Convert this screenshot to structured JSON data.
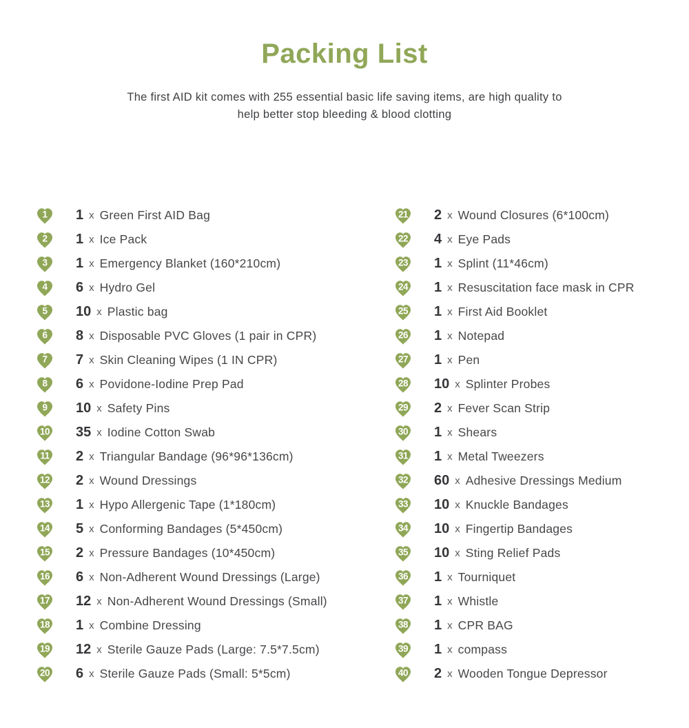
{
  "page": {
    "title": "Packing List",
    "subtitle_line1": "The first AID kit comes with 255 essential basic life saving items, are high quality to",
    "subtitle_line2": "help better stop bleeding & blood clotting"
  },
  "colors": {
    "accent_green": "#90a758",
    "heart_number_color": "#ffffff",
    "quantity_color": "#353539",
    "body_text_color": "#47474b"
  },
  "icons": {
    "item_marker": "heart-icon"
  },
  "list": {
    "sep": "x",
    "left": [
      {
        "num": "1",
        "qty": "1",
        "label": "Green First AID Bag"
      },
      {
        "num": "2",
        "qty": "1",
        "label": "Ice Pack"
      },
      {
        "num": "3",
        "qty": "1",
        "label": "Emergency Blanket (160*210cm)"
      },
      {
        "num": "4",
        "qty": "6",
        "label": "Hydro Gel"
      },
      {
        "num": "5",
        "qty": "10",
        "label": "Plastic bag"
      },
      {
        "num": "6",
        "qty": "8",
        "label": "Disposable PVC Gloves (1 pair in CPR)"
      },
      {
        "num": "7",
        "qty": "7",
        "label": "Skin Cleaning Wipes (1 IN CPR)"
      },
      {
        "num": "8",
        "qty": "6",
        "label": "Povidone-Iodine Prep Pad"
      },
      {
        "num": "9",
        "qty": "10",
        "label": "Safety Pins"
      },
      {
        "num": "10",
        "qty": "35",
        "label": "Iodine Cotton Swab"
      },
      {
        "num": "11",
        "qty": "2",
        "label": "Triangular Bandage (96*96*136cm)"
      },
      {
        "num": "12",
        "qty": "2",
        "label": "Wound Dressings"
      },
      {
        "num": "13",
        "qty": "1",
        "label": "Hypo Allergenic Tape (1*180cm)"
      },
      {
        "num": "14",
        "qty": "5",
        "label": "Conforming Bandages (5*450cm)"
      },
      {
        "num": "15",
        "qty": "2",
        "label": "Pressure Bandages (10*450cm)"
      },
      {
        "num": "16",
        "qty": "6",
        "label": "Non-Adherent Wound Dressings  (Large)"
      },
      {
        "num": "17",
        "qty": "12",
        "label": "Non-Adherent Wound Dressings (Small)"
      },
      {
        "num": "18",
        "qty": "1",
        "label": "Combine Dressing"
      },
      {
        "num": "19",
        "qty": "12",
        "label": "Sterile Gauze Pads  (Large: 7.5*7.5cm)"
      },
      {
        "num": "20",
        "qty": "6",
        "label": "Sterile Gauze Pads  (Small: 5*5cm)"
      }
    ],
    "right": [
      {
        "num": "21",
        "qty": "2",
        "label": "Wound Closures (6*100cm)"
      },
      {
        "num": "22",
        "qty": "4",
        "label": "Eye Pads"
      },
      {
        "num": "23",
        "qty": "1",
        "label": "Splint (11*46cm)"
      },
      {
        "num": "24",
        "qty": "1",
        "label": "Resuscitation face mask in CPR"
      },
      {
        "num": "25",
        "qty": "1",
        "label": "First Aid Booklet"
      },
      {
        "num": "26",
        "qty": "1",
        "label": "Notepad"
      },
      {
        "num": "27",
        "qty": "1",
        "label": "Pen"
      },
      {
        "num": "28",
        "qty": "10",
        "label": "Splinter Probes"
      },
      {
        "num": "29",
        "qty": "2",
        "label": "Fever Scan Strip"
      },
      {
        "num": "30",
        "qty": "1",
        "label": "Shears"
      },
      {
        "num": "31",
        "qty": "1",
        "label": "Metal Tweezers"
      },
      {
        "num": "32",
        "qty": "60",
        "label": "Adhesive Dressings Medium"
      },
      {
        "num": "33",
        "qty": "10",
        "label": "Knuckle Bandages"
      },
      {
        "num": "34",
        "qty": "10",
        "label": "Fingertip Bandages"
      },
      {
        "num": "35",
        "qty": "10",
        "label": "Sting Relief Pads"
      },
      {
        "num": "36",
        "qty": "1",
        "label": "Tourniquet"
      },
      {
        "num": "37",
        "qty": "1",
        "label": "Whistle"
      },
      {
        "num": "38",
        "qty": "1",
        "label": "CPR BAG"
      },
      {
        "num": "39",
        "qty": "1",
        "label": "compass"
      },
      {
        "num": "40",
        "qty": "2",
        "label": "Wooden Tongue Depressor"
      }
    ]
  }
}
